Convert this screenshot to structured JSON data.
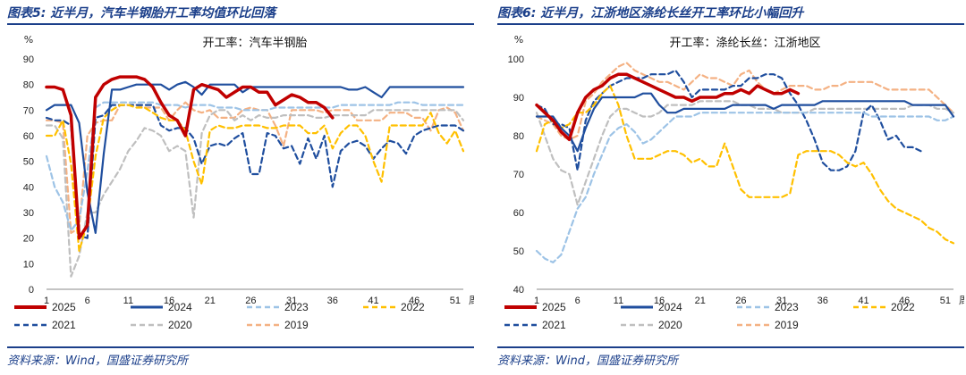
{
  "panels": [
    {
      "title": "图表5:  近半月，汽车半钢胎开工率均值环比回落",
      "source": "资料来源：Wind，国盛证券研究所",
      "chart_data": {
        "type": "line",
        "title": "开工率：汽车半钢胎",
        "ylabel": "%",
        "xlabel": "周",
        "ylim": [
          0,
          90
        ],
        "yticks": [
          0,
          10,
          20,
          30,
          40,
          50,
          60,
          70,
          80,
          90
        ],
        "xticks": [
          1,
          6,
          11,
          16,
          21,
          26,
          31,
          36,
          41,
          46,
          51
        ],
        "xlim": [
          1,
          52
        ],
        "series": [
          {
            "name": "2025",
            "color": "#c00000",
            "dash": "solid",
            "width": 3.5,
            "values": [
              79,
              79,
              78,
              68,
              20,
              25,
              75,
              80,
              82,
              83,
              83,
              83,
              82,
              79,
              73,
              68,
              66,
              60,
              78,
              80,
              79,
              78,
              75,
              77,
              79,
              79,
              77,
              77,
              72,
              74,
              76,
              75,
              73,
              73,
              71,
              67
            ]
          },
          {
            "name": "2024",
            "color": "#1f4e9e",
            "dash": "solid",
            "width": 2.2,
            "values": [
              70,
              72,
              72,
              72,
              65,
              38,
              22,
              53,
              78,
              78,
              79,
              80,
              80,
              80,
              80,
              78,
              80,
              81,
              79,
              76,
              80,
              80,
              80,
              80,
              77,
              79,
              79,
              79,
              79,
              79,
              79,
              79,
              79,
              79,
              79,
              79,
              79,
              78,
              78,
              79,
              77,
              75,
              79,
              79,
              79,
              79,
              79,
              79,
              79,
              79,
              79,
              79
            ]
          },
          {
            "name": "2023",
            "color": "#9dc3e6",
            "dash": "dash",
            "width": 2.2,
            "values": [
              52,
              40,
              34,
              23,
              27,
              46,
              71,
              73,
              73,
              73,
              73,
              73,
              73,
              73,
              72,
              72,
              72,
              71,
              72,
              72,
              72,
              71,
              71,
              71,
              70,
              70,
              70,
              70,
              71,
              71,
              71,
              71,
              71,
              71,
              71,
              71,
              72,
              72,
              72,
              72,
              72,
              72,
              72,
              73,
              73,
              73,
              72,
              72,
              72,
              72,
              72,
              72
            ]
          },
          {
            "name": "2022",
            "color": "#ffc000",
            "dash": "dash",
            "width": 2.2,
            "values": [
              60,
              60,
              66,
              49,
              15,
              26,
              52,
              67,
              70,
              72,
              72,
              71,
              71,
              69,
              67,
              66,
              66,
              62,
              50,
              41,
              62,
              64,
              63,
              63,
              64,
              64,
              64,
              63,
              63,
              64,
              64,
              64,
              61,
              61,
              64,
              55,
              61,
              64,
              64,
              60,
              50,
              42,
              64,
              64,
              64,
              64,
              64,
              69,
              61,
              57,
              62,
              54
            ]
          },
          {
            "name": "2021",
            "color": "#1f4e9e",
            "dash": "dash",
            "width": 2.2,
            "values": [
              67,
              66,
              66,
              64,
              21,
              20,
              67,
              68,
              72,
              72,
              72,
              72,
              72,
              72,
              64,
              62,
              63,
              63,
              59,
              49,
              56,
              57,
              56,
              59,
              61,
              45,
              45,
              61,
              60,
              55,
              56,
              49,
              59,
              51,
              60,
              40,
              54,
              57,
              58,
              56,
              51,
              55,
              58,
              57,
              53,
              60,
              62,
              63,
              64,
              64,
              64,
              62
            ]
          },
          {
            "name": "2020",
            "color": "#bfbfbf",
            "dash": "dash",
            "width": 2.2,
            "values": [
              64,
              64,
              59,
              5,
              13,
              30,
              30,
              37,
              42,
              47,
              54,
              58,
              63,
              62,
              60,
              54,
              56,
              54,
              28,
              61,
              68,
              70,
              70,
              66,
              68,
              66,
              68,
              67,
              67,
              68,
              68,
              68,
              68,
              67,
              67,
              68,
              68,
              68,
              68,
              68,
              70,
              70,
              70,
              70,
              70,
              70,
              70,
              70,
              70,
              70,
              70,
              66
            ]
          },
          {
            "name": "2019",
            "color": "#f4b183",
            "dash": "dash",
            "width": 2.2,
            "values": [
              66,
              66,
              65,
              22,
              24,
              60,
              65,
              66,
              66,
              72,
              72,
              72,
              71,
              71,
              71,
              66,
              70,
              73,
              70,
              69,
              70,
              67,
              67,
              67,
              70,
              71,
              70,
              70,
              64,
              56,
              70,
              70,
              70,
              70,
              69,
              70,
              70,
              70,
              66,
              66,
              66,
              66,
              69,
              69,
              69,
              67,
              67,
              62,
              70,
              71,
              69,
              62
            ]
          }
        ]
      }
    },
    {
      "title": "图表6:  近半月，江浙地区涤纶长丝开工率环比小幅回升",
      "source": "资料来源：Wind，国盛证券研究所",
      "chart_data": {
        "type": "line",
        "title": "开工率：涤纶长丝：江浙地区",
        "ylabel": "%",
        "xlabel": "周",
        "ylim": [
          40,
          100
        ],
        "yticks": [
          40,
          50,
          60,
          70,
          80,
          90,
          100
        ],
        "xticks": [
          1,
          6,
          11,
          16,
          21,
          26,
          31,
          36,
          41,
          46,
          51
        ],
        "xlim": [
          1,
          52
        ],
        "series": [
          {
            "name": "2025",
            "color": "#c00000",
            "dash": "solid",
            "width": 3.5,
            "values": [
              88,
              86,
              84,
              81,
              79,
              86,
              90,
              92,
              93,
              95,
              96,
              96,
              95,
              94,
              93,
              92,
              91,
              90,
              90,
              89,
              90,
              90,
              90,
              91,
              91,
              92,
              91,
              93,
              92,
              91,
              91,
              92,
              91
            ]
          },
          {
            "name": "2024",
            "color": "#1f4e9e",
            "dash": "solid",
            "width": 2.2,
            "values": [
              85,
              85,
              85,
              82,
              80,
              76,
              82,
              87,
              90,
              90,
              90,
              90,
              90,
              91,
              91,
              88,
              86,
              86,
              87,
              87,
              87,
              87,
              87,
              87,
              88,
              88,
              88,
              88,
              88,
              87,
              88,
              88,
              88,
              88,
              88,
              89,
              89,
              89,
              89,
              89,
              89,
              89,
              89,
              89,
              89,
              89,
              88,
              88,
              88,
              88,
              88,
              85
            ]
          },
          {
            "name": "2023",
            "color": "#9dc3e6",
            "dash": "dash",
            "width": 2.2,
            "values": [
              50,
              48,
              47,
              49,
              55,
              61,
              64,
              70,
              75,
              80,
              82,
              83,
              81,
              78,
              79,
              81,
              83,
              85,
              85,
              85,
              86,
              86,
              86,
              86,
              86,
              86,
              86,
              86,
              86,
              86,
              86,
              86,
              86,
              86,
              86,
              86,
              86,
              86,
              86,
              86,
              86,
              85,
              85,
              85,
              85,
              85,
              85,
              85,
              85,
              84,
              84,
              85
            ]
          },
          {
            "name": "2022",
            "color": "#ffc000",
            "dash": "dash",
            "width": 2.2,
            "values": [
              76,
              83,
              84,
              82,
              83,
              86,
              86,
              88,
              91,
              93,
              88,
              80,
              74,
              74,
              74,
              75,
              76,
              76,
              75,
              73,
              74,
              72,
              72,
              78,
              72,
              66,
              64,
              64,
              64,
              64,
              64,
              65,
              75,
              76,
              76,
              76,
              76,
              75,
              73,
              72,
              73,
              70,
              66,
              63,
              61,
              60,
              59,
              58,
              56,
              55,
              53,
              52
            ]
          },
          {
            "name": "2021",
            "color": "#1f4e9e",
            "dash": "dash",
            "width": 2.2,
            "values": [
              88,
              87,
              83,
              83,
              82,
              71,
              84,
              89,
              91,
              93,
              94,
              95,
              95,
              95,
              96,
              96,
              96,
              97,
              94,
              90,
              92,
              92,
              92,
              92,
              93,
              93,
              95,
              95,
              96,
              96,
              95,
              91,
              88,
              84,
              79,
              73,
              71,
              71,
              72,
              76,
              86,
              88,
              84,
              79,
              80,
              77,
              77,
              76
            ]
          },
          {
            "name": "2020",
            "color": "#bfbfbf",
            "dash": "dash",
            "width": 2.2,
            "values": [
              86,
              80,
              74,
              71,
              70,
              62,
              68,
              74,
              80,
              85,
              87,
              87,
              86,
              85,
              85,
              86,
              88,
              88,
              88,
              88,
              89,
              89,
              89,
              89,
              89,
              88,
              88,
              87,
              87,
              87,
              86,
              86,
              86,
              86,
              87,
              87,
              87,
              87,
              87,
              87,
              87,
              87,
              87,
              87,
              87,
              87,
              88,
              88,
              88,
              87,
              87,
              86
            ]
          },
          {
            "name": "2019",
            "color": "#f4b183",
            "dash": "dash",
            "width": 2.2,
            "values": [
              85,
              84,
              83,
              80,
              79,
              80,
              89,
              91,
              94,
              96,
              98,
              99,
              97,
              96,
              95,
              94,
              94,
              93,
              92,
              94,
              96,
              95,
              95,
              94,
              93,
              96,
              97,
              94,
              92,
              91,
              92,
              93,
              93,
              93,
              92,
              92,
              93,
              93,
              94,
              94,
              94,
              94,
              93,
              92,
              92,
              92,
              92,
              92,
              92,
              90,
              88,
              86
            ]
          }
        ]
      }
    }
  ]
}
